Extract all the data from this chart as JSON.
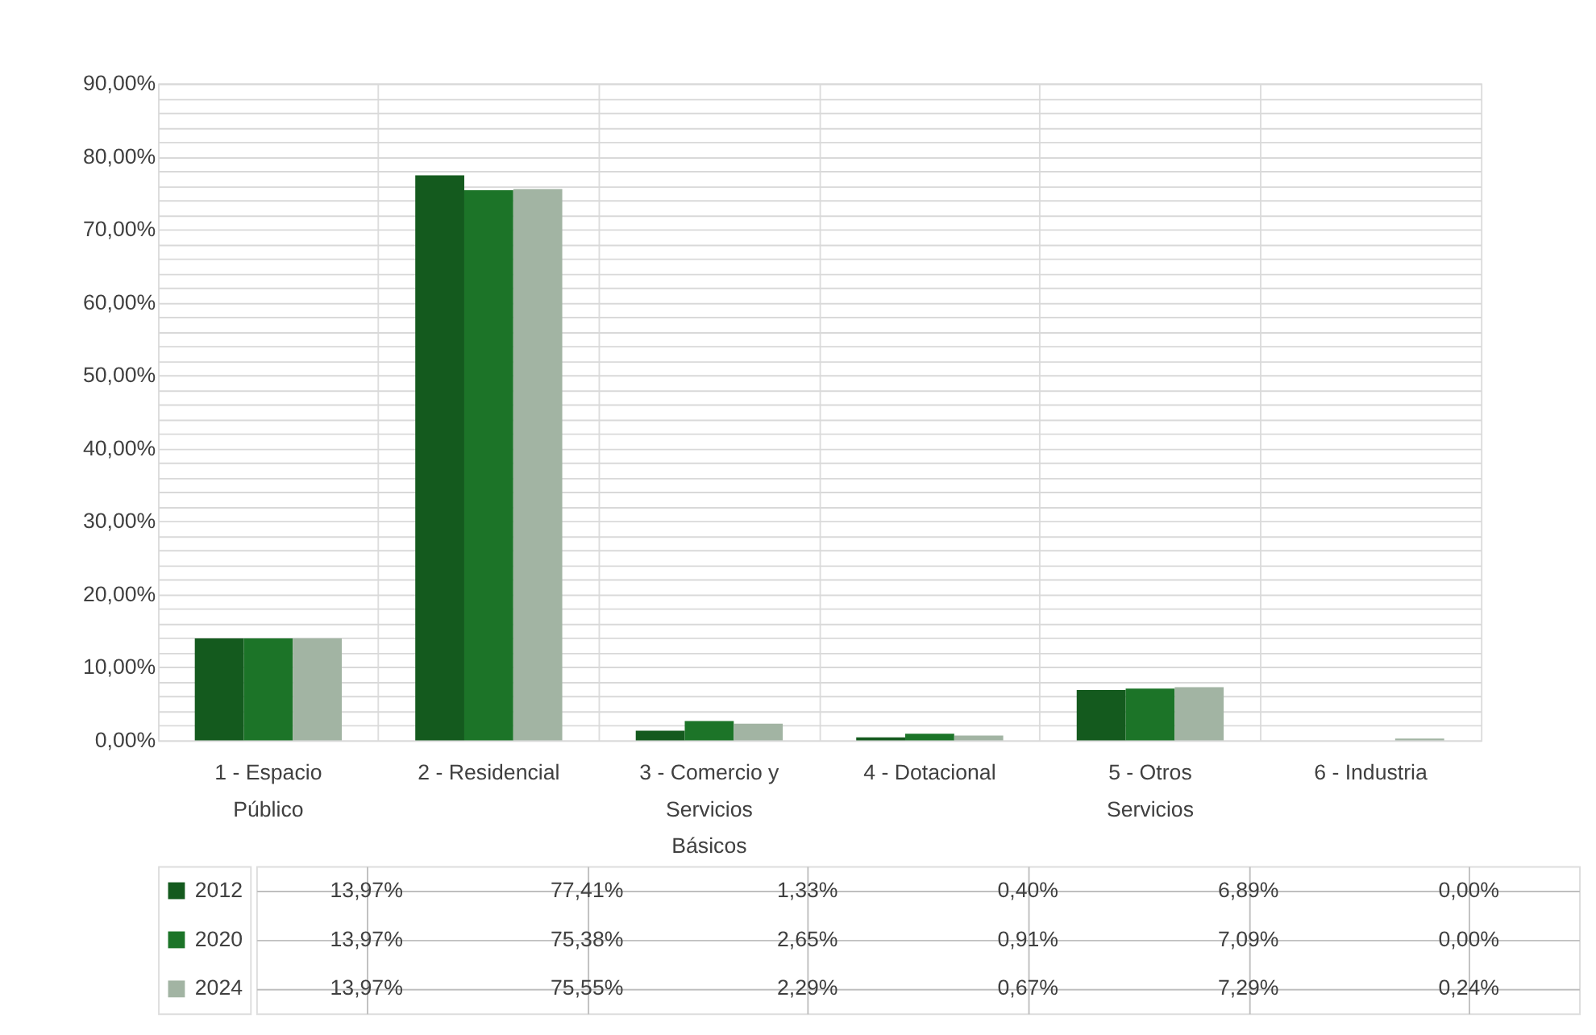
{
  "chart_data": {
    "type": "bar",
    "categories": [
      "1 - Espacio Público",
      "2 - Residencial",
      "3 - Comercio y Servicios Básicos",
      "4 - Dotacional",
      "5 - Otros Servicios",
      "6 - Industria"
    ],
    "series": [
      {
        "name": "2012",
        "color": "#145a1e",
        "values": [
          13.97,
          77.41,
          1.33,
          0.4,
          6.89,
          0.0
        ],
        "value_labels": [
          "13,97%",
          "77,41%",
          "1,33%",
          "0,40%",
          "6,89%",
          "0,00%"
        ]
      },
      {
        "name": "2020",
        "color": "#1c7428",
        "values": [
          13.97,
          75.38,
          2.65,
          0.91,
          7.09,
          0.0
        ],
        "value_labels": [
          "13,97%",
          "75,38%",
          "2,65%",
          "0,91%",
          "7,09%",
          "0,00%"
        ]
      },
      {
        "name": "2024",
        "color": "#a2b4a3",
        "values": [
          13.97,
          75.55,
          2.29,
          0.67,
          7.29,
          0.24
        ],
        "value_labels": [
          "13,97%",
          "75,55%",
          "2,29%",
          "0,67%",
          "7,29%",
          "0,24%"
        ]
      }
    ],
    "ylim": [
      0,
      90
    ],
    "yticks": [
      {
        "value": 0,
        "label": "0,00%"
      },
      {
        "value": 2,
        "label": null
      },
      {
        "value": 4,
        "label": null
      },
      {
        "value": 6,
        "label": null
      },
      {
        "value": 8,
        "label": null
      },
      {
        "value": 10,
        "label": "10,00%"
      },
      {
        "value": 12,
        "label": null
      },
      {
        "value": 14,
        "label": null
      },
      {
        "value": 16,
        "label": null
      },
      {
        "value": 18,
        "label": null
      },
      {
        "value": 20,
        "label": "20,00%"
      },
      {
        "value": 22,
        "label": null
      },
      {
        "value": 24,
        "label": null
      },
      {
        "value": 26,
        "label": null
      },
      {
        "value": 28,
        "label": null
      },
      {
        "value": 30,
        "label": "30,00%"
      },
      {
        "value": 32,
        "label": null
      },
      {
        "value": 34,
        "label": null
      },
      {
        "value": 36,
        "label": null
      },
      {
        "value": 38,
        "label": null
      },
      {
        "value": 40,
        "label": "40,00%"
      },
      {
        "value": 42,
        "label": null
      },
      {
        "value": 44,
        "label": null
      },
      {
        "value": 46,
        "label": null
      },
      {
        "value": 48,
        "label": null
      },
      {
        "value": 50,
        "label": "50,00%"
      },
      {
        "value": 52,
        "label": null
      },
      {
        "value": 54,
        "label": null
      },
      {
        "value": 56,
        "label": null
      },
      {
        "value": 58,
        "label": null
      },
      {
        "value": 60,
        "label": "60,00%"
      },
      {
        "value": 62,
        "label": null
      },
      {
        "value": 64,
        "label": null
      },
      {
        "value": 66,
        "label": null
      },
      {
        "value": 68,
        "label": null
      },
      {
        "value": 70,
        "label": "70,00%"
      },
      {
        "value": 72,
        "label": null
      },
      {
        "value": 74,
        "label": null
      },
      {
        "value": 76,
        "label": null
      },
      {
        "value": 78,
        "label": null
      },
      {
        "value": 80,
        "label": "80,00%"
      },
      {
        "value": 82,
        "label": null
      },
      {
        "value": 84,
        "label": null
      },
      {
        "value": 86,
        "label": null
      },
      {
        "value": 88,
        "label": null
      },
      {
        "value": 90,
        "label": "90,00%"
      }
    ],
    "grid": true,
    "legend": "bottom"
  }
}
